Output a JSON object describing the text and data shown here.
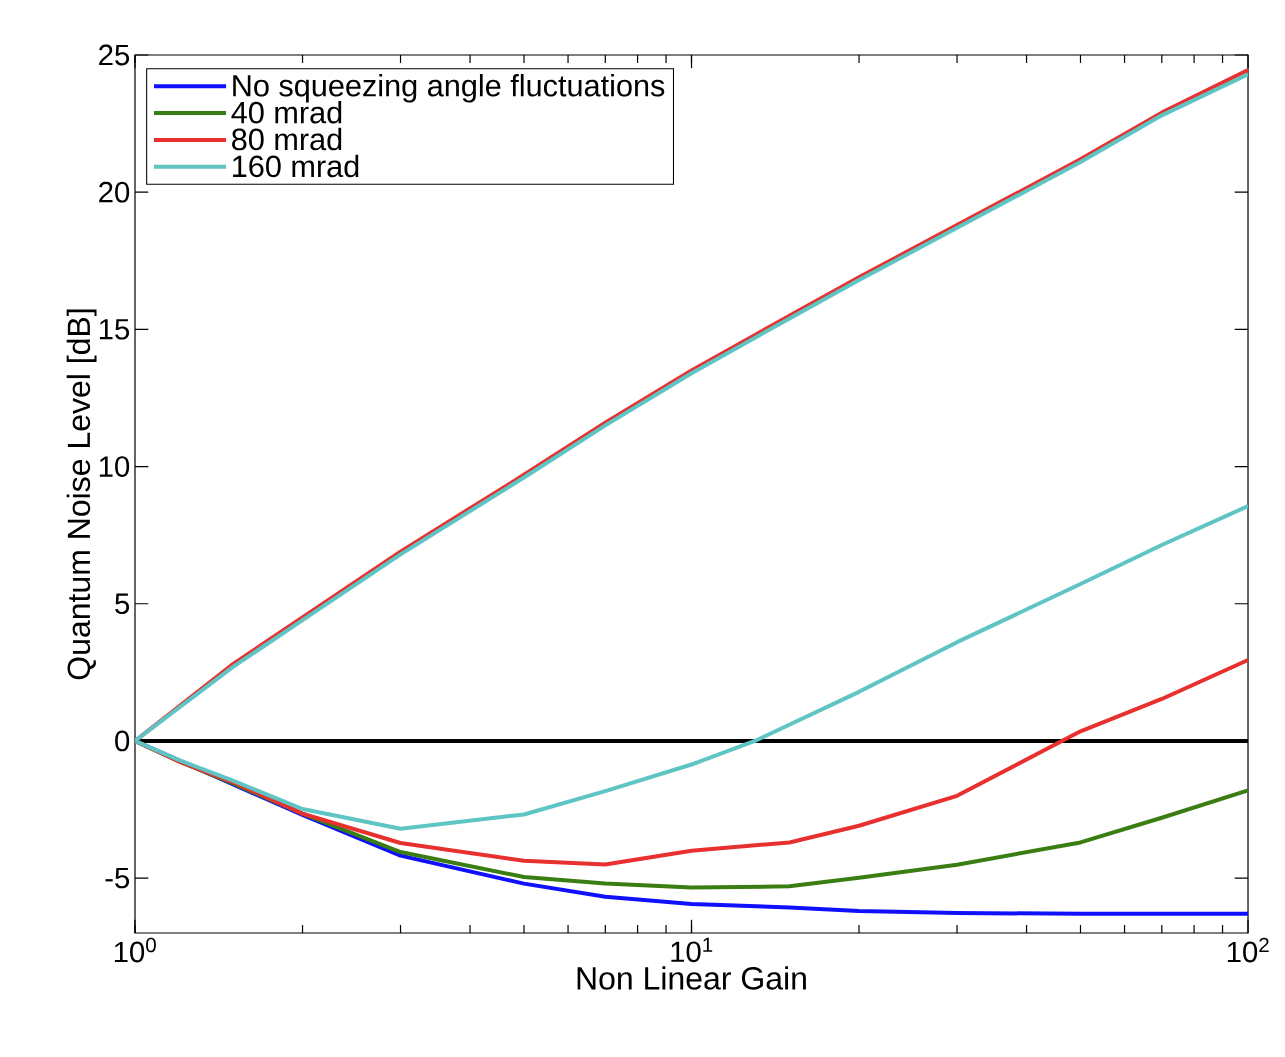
{
  "chart_data": {
    "type": "line",
    "xlabel": "Non Linear Gain",
    "ylabel": "Quantum Noise Level [dB]",
    "log": "x",
    "xlim": [
      1,
      100
    ],
    "ylim": [
      -7,
      25
    ],
    "xticks": [
      {
        "value": 1,
        "label": "10$^{0}$"
      },
      {
        "value": 10,
        "label": "10$^{1}$"
      },
      {
        "value": 100,
        "label": "10$^{2}$"
      }
    ],
    "yticks": [
      -5,
      0,
      5,
      10,
      15,
      20,
      25
    ],
    "grid": false,
    "legend": "top left",
    "ref_lines": [
      {
        "axis": "y",
        "value": 0,
        "color": "#000000"
      }
    ],
    "series": [
      {
        "name": "No squeezing angle fluctuations",
        "color": "#1010ff",
        "x": [
          1,
          1.2,
          1.5,
          2,
          3,
          5,
          7,
          10,
          15,
          20,
          30,
          50,
          70,
          100
        ],
        "values": [
          0,
          null,
          null,
          -2.7,
          -4.18,
          -5.2,
          -5.68,
          -5.94,
          -6.07,
          -6.2,
          -6.27,
          -6.3,
          -6.3,
          -6.3
        ]
      },
      {
        "name": "40 mrad",
        "color": "#3a7d12",
        "x": [
          1,
          1.2,
          1.5,
          2,
          3,
          5,
          7,
          10,
          15,
          20,
          30,
          50,
          70,
          100
        ],
        "values": [
          0,
          -0.75,
          -1.55,
          -2.65,
          -4.05,
          -4.96,
          -5.2,
          -5.34,
          -5.3,
          -4.99,
          -4.51,
          -3.7,
          -2.8,
          -1.8
        ]
      },
      {
        "name": "80 mrad",
        "color": "#e8302e",
        "x": [
          1,
          1.2,
          1.5,
          2,
          3,
          5,
          7,
          10,
          15,
          20,
          30,
          50,
          70,
          100
        ],
        "values": [
          0,
          -0.75,
          -1.5,
          -2.65,
          -3.72,
          -4.37,
          -4.5,
          -4.0,
          -3.7,
          -3.09,
          -2.0,
          0.35,
          1.53,
          2.95
        ]
      },
      {
        "name": "160 mrad",
        "color": "#5ec4c4",
        "x": [
          1,
          1.2,
          1.5,
          2,
          3,
          5,
          7,
          10,
          13,
          20,
          30,
          50,
          70,
          100
        ],
        "values": [
          0,
          -0.7,
          -1.45,
          -2.48,
          -3.2,
          -2.68,
          -1.83,
          -0.86,
          0,
          1.79,
          3.6,
          5.72,
          7.14,
          8.56
        ]
      },
      {
        "color": "#e8302e",
        "x": [
          1,
          1.5,
          2,
          3,
          5,
          7,
          10,
          15,
          20,
          30,
          50,
          70,
          100
        ],
        "values": [
          0,
          2.8,
          4.5,
          6.9,
          9.7,
          11.6,
          13.5,
          15.5,
          16.9,
          18.8,
          21.2,
          22.9,
          24.45
        ]
      },
      {
        "color": "#5ec4c4",
        "x": [
          1,
          1.5,
          2,
          3,
          5,
          7,
          10,
          15,
          20,
          30,
          50,
          70,
          100
        ],
        "values": [
          0,
          2.7,
          4.4,
          6.8,
          9.6,
          11.5,
          13.4,
          15.4,
          16.8,
          18.7,
          21.1,
          22.8,
          24.3
        ]
      }
    ]
  }
}
